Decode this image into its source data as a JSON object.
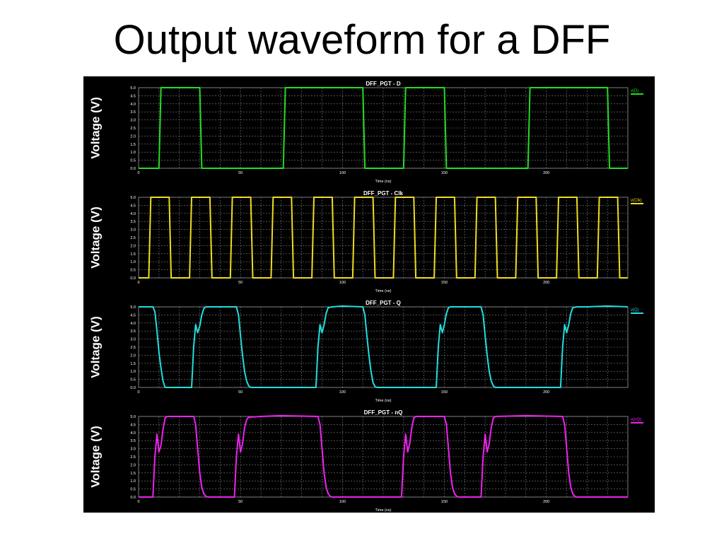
{
  "slide": {
    "title": "Output waveform for a DFF"
  },
  "colors": {
    "background": "#000000",
    "grid": "#7f7f7f",
    "text": "#ffffff"
  },
  "chart_data": [
    {
      "type": "line",
      "title": "DFF_PGT - D",
      "xlabel": "Time (ns)",
      "ylabel": "Voltage (V)",
      "xlim": [
        0,
        240
      ],
      "ylim": [
        0,
        5
      ],
      "xticks": [
        "0",
        "50",
        "100",
        "150",
        "200"
      ],
      "yticks": [
        "0.0",
        "0.5",
        "1.0",
        "1.5",
        "2.0",
        "2.5",
        "3.0",
        "3.5",
        "4.0",
        "4.5",
        "5.0"
      ],
      "grid": true,
      "legend": "top-right",
      "series": [
        {
          "name": "v(D)",
          "color": "#22dd22",
          "x": [
            0,
            10,
            11,
            30,
            31,
            71,
            72,
            110,
            111,
            130,
            131,
            150,
            151,
            191,
            192,
            230,
            231,
            240
          ],
          "y": [
            0,
            0,
            5,
            5,
            0,
            0,
            5,
            5,
            0,
            0,
            5,
            5,
            0,
            0,
            5,
            5,
            0,
            0
          ]
        }
      ]
    },
    {
      "type": "line",
      "title": "DFF_PGT - Clk",
      "xlabel": "Time (ns)",
      "ylabel": "Voltage (V)",
      "xlim": [
        0,
        240
      ],
      "ylim": [
        0,
        5
      ],
      "xticks": [
        "0",
        "50",
        "100",
        "150",
        "200"
      ],
      "yticks": [
        "0.0",
        "0.5",
        "1.0",
        "1.5",
        "2.0",
        "2.5",
        "3.0",
        "3.5",
        "4.0",
        "4.5",
        "5.0"
      ],
      "grid": true,
      "legend": "top-right",
      "series": [
        {
          "name": "v(Clk)",
          "color": "#eedd22",
          "x": [
            0,
            5,
            6,
            15,
            16,
            25,
            26,
            35,
            36,
            45,
            46,
            55,
            56,
            65,
            66,
            75,
            76,
            85,
            86,
            95,
            96,
            105,
            106,
            115,
            116,
            125,
            126,
            135,
            136,
            145,
            146,
            155,
            156,
            165,
            166,
            175,
            176,
            185,
            186,
            195,
            196,
            205,
            206,
            215,
            216,
            225,
            226,
            235,
            236,
            240
          ],
          "y": [
            0,
            0,
            5,
            5,
            0,
            0,
            5,
            5,
            0,
            0,
            5,
            5,
            0,
            0,
            5,
            5,
            0,
            0,
            5,
            5,
            0,
            0,
            5,
            5,
            0,
            0,
            5,
            5,
            0,
            0,
            5,
            5,
            0,
            0,
            5,
            5,
            0,
            0,
            5,
            5,
            0,
            0,
            5,
            5,
            0,
            0,
            5,
            5,
            0,
            0
          ]
        }
      ]
    },
    {
      "type": "line",
      "title": "DFF_PGT - Q",
      "xlabel": "Time (ns)",
      "ylabel": "Voltage (V)",
      "xlim": [
        0,
        240
      ],
      "ylim": [
        0,
        5
      ],
      "xticks": [
        "0",
        "50",
        "100",
        "150",
        "200"
      ],
      "yticks": [
        "0.0",
        "0.5",
        "1.0",
        "1.5",
        "2.0",
        "2.5",
        "3.0",
        "3.5",
        "4.0",
        "4.5",
        "5.0"
      ],
      "grid": true,
      "legend": "top-right",
      "series": [
        {
          "name": "v(Q)",
          "color": "#22dddd",
          "x": [
            0,
            7,
            8,
            9,
            10,
            11,
            12,
            13,
            26,
            27,
            28,
            29,
            30,
            31,
            32,
            33,
            35,
            38,
            48,
            49,
            50,
            51,
            52,
            53,
            54,
            55,
            87,
            88,
            89,
            90,
            91,
            92,
            93,
            95,
            100,
            110,
            111,
            112,
            113,
            114,
            115,
            116,
            117,
            146,
            147,
            148,
            149,
            150,
            151,
            152,
            153,
            155,
            158,
            168,
            169,
            170,
            171,
            172,
            173,
            174,
            175,
            207,
            208,
            209,
            210,
            211,
            212,
            213,
            215,
            220,
            230,
            240
          ],
          "y": [
            5,
            5,
            4.7,
            3.5,
            2.2,
            1.2,
            0.4,
            0,
            0,
            2.5,
            3.9,
            3.4,
            3.8,
            4.5,
            4.9,
            5,
            5,
            5,
            5,
            4.5,
            3.2,
            2.0,
            1.0,
            0.4,
            0.1,
            0,
            0,
            2.5,
            3.9,
            3.4,
            3.9,
            4.6,
            4.95,
            5,
            5.05,
            5,
            4.5,
            3.2,
            2.0,
            1.0,
            0.3,
            0.05,
            0,
            0,
            2.5,
            3.9,
            3.4,
            3.9,
            4.6,
            4.95,
            5,
            5,
            5,
            5,
            4.5,
            3.2,
            2.0,
            1.0,
            0.4,
            0.1,
            0,
            0,
            2.5,
            3.9,
            3.4,
            3.9,
            4.6,
            4.95,
            5,
            5,
            5.05,
            5
          ]
        }
      ]
    },
    {
      "type": "line",
      "title": "DFF_PGT - nQ",
      "xlabel": "Time (ns)",
      "ylabel": "Voltage (V)",
      "xlim": [
        0,
        240
      ],
      "ylim": [
        0,
        5
      ],
      "xticks": [
        "0",
        "50",
        "100",
        "150",
        "200"
      ],
      "yticks": [
        "0.0",
        "0.5",
        "1.0",
        "1.5",
        "2.0",
        "2.5",
        "3.0",
        "3.5",
        "4.0",
        "4.5",
        "5.0"
      ],
      "grid": true,
      "legend": "top-right",
      "series": [
        {
          "name": "v(nQ)",
          "color": "#ee22ee",
          "x": [
            0,
            7,
            8,
            9,
            10,
            11,
            12,
            13,
            14,
            27,
            28,
            29,
            30,
            31,
            32,
            33,
            34,
            47,
            48,
            49,
            50,
            51,
            52,
            53,
            54,
            60,
            70,
            88,
            89,
            90,
            91,
            92,
            93,
            94,
            95,
            129,
            130,
            131,
            132,
            133,
            134,
            135,
            136,
            150,
            151,
            152,
            153,
            154,
            155,
            156,
            157,
            168,
            169,
            170,
            171,
            172,
            173,
            174,
            175,
            190,
            208,
            209,
            210,
            211,
            212,
            213,
            214,
            215,
            240
          ],
          "y": [
            0,
            0,
            2.5,
            3.9,
            2.8,
            3.2,
            4.2,
            4.9,
            5,
            5,
            4.5,
            3.0,
            1.5,
            0.6,
            0.2,
            0.05,
            0,
            0,
            2.5,
            3.9,
            2.8,
            3.3,
            4.3,
            4.8,
            4.95,
            5,
            5.05,
            5,
            4.5,
            3.0,
            1.5,
            0.6,
            0.2,
            0.05,
            0,
            0,
            2.5,
            3.9,
            2.8,
            3.3,
            4.3,
            4.9,
            5,
            5,
            4.5,
            3.0,
            1.5,
            0.6,
            0.2,
            0.05,
            0,
            0,
            2.5,
            3.9,
            2.8,
            3.3,
            4.3,
            4.9,
            5,
            5.05,
            5,
            4.5,
            3.0,
            1.5,
            0.6,
            0.2,
            0.05,
            0,
            0
          ]
        }
      ]
    }
  ]
}
